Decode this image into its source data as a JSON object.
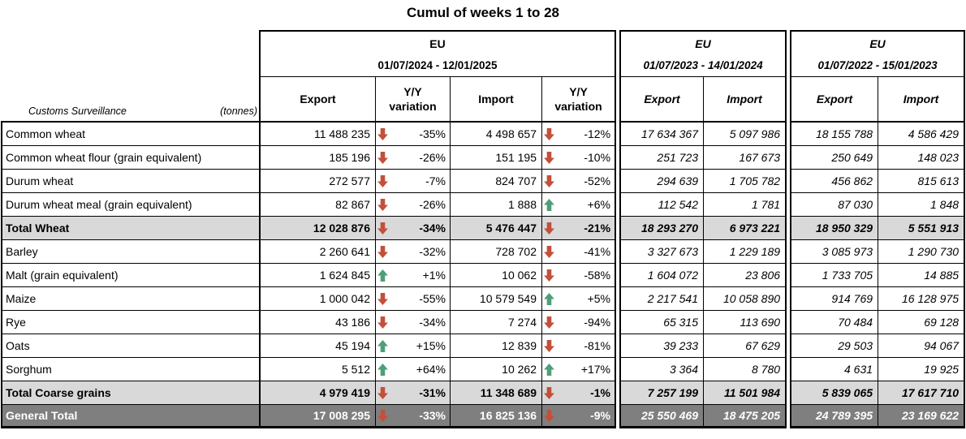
{
  "chart_data": {
    "type": "table",
    "title": "Cumul of weeks 1 to 28",
    "corner_label": "Customs Surveillance",
    "corner_unit": "(tonnes)",
    "column_groups": [
      {
        "region": "EU",
        "period": "01/07/2024 - 12/01/2025",
        "columns": [
          "Export",
          "Y/Y variation",
          "Import",
          "Y/Y variation"
        ]
      },
      {
        "region": "EU",
        "period": "01/07/2023 - 14/01/2024",
        "columns": [
          "Export",
          "Import"
        ]
      },
      {
        "region": "EU",
        "period": "01/07/2022 - 15/01/2023",
        "columns": [
          "Export",
          "Import"
        ]
      }
    ],
    "rows": [
      {
        "name": "Common wheat",
        "row_style": "normal",
        "export_2425": "11 488 235",
        "export_var_dir": "down",
        "export_var": "-35%",
        "import_2425": "4 498 657",
        "import_var_dir": "down",
        "import_var": "-12%",
        "export_2324": "17 634 367",
        "import_2324": "5 097 986",
        "export_2223": "18 155 788",
        "import_2223": "4 586 429"
      },
      {
        "name": "Common wheat flour (grain equivalent)",
        "row_style": "normal",
        "export_2425": "185 196",
        "export_var_dir": "down",
        "export_var": "-26%",
        "import_2425": "151 195",
        "import_var_dir": "down",
        "import_var": "-10%",
        "export_2324": "251 723",
        "import_2324": "167 673",
        "export_2223": "250 649",
        "import_2223": "148 023"
      },
      {
        "name": "Durum wheat",
        "row_style": "normal",
        "export_2425": "272 577",
        "export_var_dir": "down",
        "export_var": "-7%",
        "import_2425": "824 707",
        "import_var_dir": "down",
        "import_var": "-52%",
        "export_2324": "294 639",
        "import_2324": "1 705 782",
        "export_2223": "456 862",
        "import_2223": "815 613"
      },
      {
        "name": "Durum wheat meal (grain equivalent)",
        "row_style": "normal",
        "export_2425": "82 867",
        "export_var_dir": "down",
        "export_var": "-26%",
        "import_2425": "1 888",
        "import_var_dir": "up",
        "import_var": "+6%",
        "export_2324": "112 542",
        "import_2324": "1 781",
        "export_2223": "87 030",
        "import_2223": "1 848"
      },
      {
        "name": "Total Wheat",
        "row_style": "total",
        "export_2425": "12 028 876",
        "export_var_dir": "down",
        "export_var": "-34%",
        "import_2425": "5 476 447",
        "import_var_dir": "down",
        "import_var": "-21%",
        "export_2324": "18 293 270",
        "import_2324": "6 973 221",
        "export_2223": "18 950 329",
        "import_2223": "5 551 913"
      },
      {
        "name": "Barley",
        "row_style": "normal",
        "export_2425": "2 260 641",
        "export_var_dir": "down",
        "export_var": "-32%",
        "import_2425": "728 702",
        "import_var_dir": "down",
        "import_var": "-41%",
        "export_2324": "3 327 673",
        "import_2324": "1 229 189",
        "export_2223": "3 085 973",
        "import_2223": "1 290 730"
      },
      {
        "name": "Malt (grain equivalent)",
        "row_style": "normal",
        "export_2425": "1 624 845",
        "export_var_dir": "up",
        "export_var": "+1%",
        "import_2425": "10 062",
        "import_var_dir": "down",
        "import_var": "-58%",
        "export_2324": "1 604 072",
        "import_2324": "23 806",
        "export_2223": "1 733 705",
        "import_2223": "14 885"
      },
      {
        "name": "Maize",
        "row_style": "normal",
        "export_2425": "1 000 042",
        "export_var_dir": "down",
        "export_var": "-55%",
        "import_2425": "10 579 549",
        "import_var_dir": "up",
        "import_var": "+5%",
        "export_2324": "2 217 541",
        "import_2324": "10 058 890",
        "export_2223": "914 769",
        "import_2223": "16 128 975"
      },
      {
        "name": "Rye",
        "row_style": "normal",
        "export_2425": "43 186",
        "export_var_dir": "down",
        "export_var": "-34%",
        "import_2425": "7 274",
        "import_var_dir": "down",
        "import_var": "-94%",
        "export_2324": "65 315",
        "import_2324": "113 690",
        "export_2223": "70 484",
        "import_2223": "69 128"
      },
      {
        "name": "Oats",
        "row_style": "normal",
        "export_2425": "45 194",
        "export_var_dir": "up",
        "export_var": "+15%",
        "import_2425": "12 839",
        "import_var_dir": "down",
        "import_var": "-81%",
        "export_2324": "39 233",
        "import_2324": "67 629",
        "export_2223": "29 503",
        "import_2223": "94 067"
      },
      {
        "name": "Sorghum",
        "row_style": "normal",
        "export_2425": "5 512",
        "export_var_dir": "up",
        "export_var": "+64%",
        "import_2425": "10 262",
        "import_var_dir": "up",
        "import_var": "+17%",
        "export_2324": "3 364",
        "import_2324": "8 780",
        "export_2223": "4 631",
        "import_2223": "19 925"
      },
      {
        "name": "Total Coarse grains",
        "row_style": "total",
        "export_2425": "4 979 419",
        "export_var_dir": "down",
        "export_var": "-31%",
        "import_2425": "11 348 689",
        "import_var_dir": "down",
        "import_var": "-1%",
        "export_2324": "7 257 199",
        "import_2324": "11 501 984",
        "export_2223": "5 839 065",
        "import_2223": "17 617 710"
      },
      {
        "name": "General Total",
        "row_style": "grand",
        "export_2425": "17 008 295",
        "export_var_dir": "down",
        "export_var": "-33%",
        "import_2425": "16 825 136",
        "import_var_dir": "down",
        "import_var": "-9%",
        "export_2324": "25 550 469",
        "import_2324": "18 475 205",
        "export_2223": "24 789 395",
        "import_2223": "23 169 622"
      }
    ]
  },
  "colors": {
    "arrow_down": "#c2503a",
    "arrow_up": "#4f9e78",
    "total_row_bg": "#d9d9d9",
    "grand_total_bg": "#7f7f7f",
    "grand_total_text": "#ffffff",
    "border": "#000000"
  }
}
